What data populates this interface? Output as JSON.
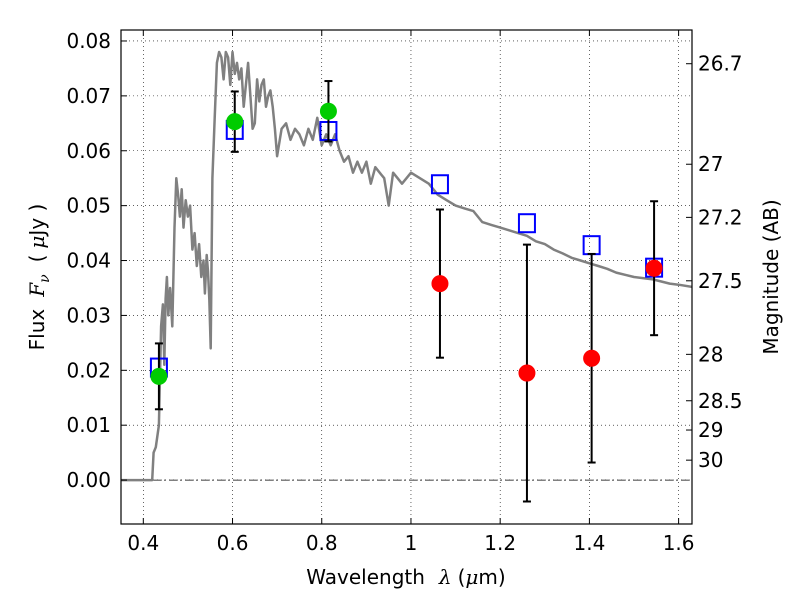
{
  "chart_data": {
    "type": "scatter",
    "xlabel": {
      "prefix": "Wavelength",
      "symbol": "λ",
      "unit": "(",
      "mu": "μ",
      "unit_end": "m)"
    },
    "ylabel": {
      "prefix": "Flux",
      "symbol": "F",
      "sub": "ν",
      "unit_open": "(",
      "mu": "μ",
      "unit_end": "Jy )"
    },
    "y2label": "Magnitude (AB)",
    "xlim": [
      0.35,
      1.63
    ],
    "ylim": [
      -0.008,
      0.082
    ],
    "grid": true,
    "x_ticks": [
      {
        "value": 0.4,
        "label": "0.4"
      },
      {
        "value": 0.6,
        "label": "0.6"
      },
      {
        "value": 0.8,
        "label": "0.8"
      },
      {
        "value": 1.0,
        "label": "1"
      },
      {
        "value": 1.2,
        "label": "1.2"
      },
      {
        "value": 1.4,
        "label": "1.4"
      },
      {
        "value": 1.6,
        "label": "1.6"
      }
    ],
    "y_ticks": [
      {
        "value": 0.0,
        "label": "0.00"
      },
      {
        "value": 0.01,
        "label": "0.01"
      },
      {
        "value": 0.02,
        "label": "0.02"
      },
      {
        "value": 0.03,
        "label": "0.03"
      },
      {
        "value": 0.04,
        "label": "0.04"
      },
      {
        "value": 0.05,
        "label": "0.05"
      },
      {
        "value": 0.06,
        "label": "0.06"
      },
      {
        "value": 0.07,
        "label": "0.07"
      },
      {
        "value": 0.08,
        "label": "0.08"
      }
    ],
    "mag_ticks": [
      {
        "value": 26.7,
        "label": "26.7"
      },
      {
        "value": 27.0,
        "label": "27"
      },
      {
        "value": 27.2,
        "label": "27.2"
      },
      {
        "value": 27.5,
        "label": "27.5"
      },
      {
        "value": 28.0,
        "label": "28"
      },
      {
        "value": 28.5,
        "label": "28.5"
      },
      {
        "value": 29.0,
        "label": "29"
      },
      {
        "value": 30.0,
        "label": "30"
      }
    ],
    "series": [
      {
        "name": "template_spectrum",
        "kind": "line",
        "color": "#808080",
        "x": [
          0.35,
          0.41,
          0.42,
          0.423,
          0.428,
          0.435,
          0.44,
          0.444,
          0.447,
          0.45,
          0.453,
          0.456,
          0.46,
          0.465,
          0.47,
          0.474,
          0.478,
          0.482,
          0.486,
          0.49,
          0.495,
          0.5,
          0.505,
          0.51,
          0.515,
          0.52,
          0.525,
          0.53,
          0.535,
          0.538,
          0.542,
          0.545,
          0.548,
          0.551,
          0.555,
          0.56,
          0.565,
          0.57,
          0.575,
          0.58,
          0.585,
          0.59,
          0.595,
          0.6,
          0.605,
          0.61,
          0.615,
          0.62,
          0.625,
          0.63,
          0.635,
          0.64,
          0.645,
          0.65,
          0.655,
          0.66,
          0.665,
          0.67,
          0.675,
          0.68,
          0.685,
          0.69,
          0.695,
          0.7,
          0.71,
          0.72,
          0.73,
          0.74,
          0.75,
          0.76,
          0.77,
          0.78,
          0.79,
          0.8,
          0.81,
          0.82,
          0.83,
          0.84,
          0.85,
          0.86,
          0.87,
          0.88,
          0.89,
          0.9,
          0.91,
          0.92,
          0.93,
          0.94,
          0.95,
          0.96,
          0.97,
          0.98,
          0.99,
          1.0,
          1.02,
          1.04,
          1.06,
          1.08,
          1.1,
          1.12,
          1.14,
          1.16,
          1.18,
          1.2,
          1.22,
          1.24,
          1.26,
          1.28,
          1.3,
          1.32,
          1.34,
          1.36,
          1.38,
          1.4,
          1.42,
          1.44,
          1.46,
          1.48,
          1.5,
          1.52,
          1.54,
          1.56,
          1.58,
          1.6,
          1.63
        ],
        "y": [
          0.0,
          0.0,
          0.0,
          0.005,
          0.006,
          0.01,
          0.028,
          0.032,
          0.021,
          0.033,
          0.037,
          0.03,
          0.035,
          0.028,
          0.046,
          0.055,
          0.052,
          0.048,
          0.053,
          0.046,
          0.051,
          0.048,
          0.05,
          0.042,
          0.045,
          0.039,
          0.043,
          0.037,
          0.04,
          0.034,
          0.041,
          0.038,
          0.033,
          0.024,
          0.055,
          0.066,
          0.076,
          0.078,
          0.077,
          0.073,
          0.078,
          0.077,
          0.072,
          0.078,
          0.074,
          0.076,
          0.073,
          0.075,
          0.068,
          0.072,
          0.076,
          0.07,
          0.064,
          0.065,
          0.073,
          0.069,
          0.072,
          0.073,
          0.068,
          0.07,
          0.071,
          0.068,
          0.064,
          0.059,
          0.064,
          0.065,
          0.062,
          0.064,
          0.063,
          0.061,
          0.064,
          0.062,
          0.066,
          0.061,
          0.063,
          0.061,
          0.063,
          0.06,
          0.058,
          0.059,
          0.056,
          0.058,
          0.056,
          0.058,
          0.054,
          0.057,
          0.056,
          0.055,
          0.05,
          0.056,
          0.055,
          0.054,
          0.055,
          0.056,
          0.055,
          0.054,
          0.052,
          0.051,
          0.05,
          0.0495,
          0.049,
          0.047,
          0.0465,
          0.046,
          0.0455,
          0.045,
          0.0445,
          0.0435,
          0.043,
          0.042,
          0.0413,
          0.0405,
          0.04,
          0.0395,
          0.039,
          0.0385,
          0.0378,
          0.0374,
          0.037,
          0.0368,
          0.0366,
          0.0362,
          0.0358,
          0.0356,
          0.0352
        ]
      },
      {
        "name": "model_photometry",
        "kind": "open-square",
        "color": "#0000ff",
        "x": [
          0.435,
          0.605,
          0.815,
          1.065,
          1.26,
          1.405,
          1.545
        ],
        "y": [
          0.0205,
          0.0638,
          0.0636,
          0.0539,
          0.0468,
          0.0428,
          0.0387
        ]
      },
      {
        "name": "detections",
        "kind": "filled-circle",
        "color": "#00cc00",
        "x": [
          0.435,
          0.605,
          0.815
        ],
        "y": [
          0.0189,
          0.0653,
          0.0672
        ],
        "yerr": [
          0.006,
          0.0055,
          0.0055
        ]
      },
      {
        "name": "low_significance",
        "kind": "filled-circle",
        "color": "#ff0000",
        "x": [
          1.065,
          1.26,
          1.405,
          1.545
        ],
        "y": [
          0.0358,
          0.0195,
          0.0222,
          0.0386
        ],
        "yerr": [
          0.0135,
          0.0234,
          0.019,
          0.0122
        ]
      }
    ]
  }
}
